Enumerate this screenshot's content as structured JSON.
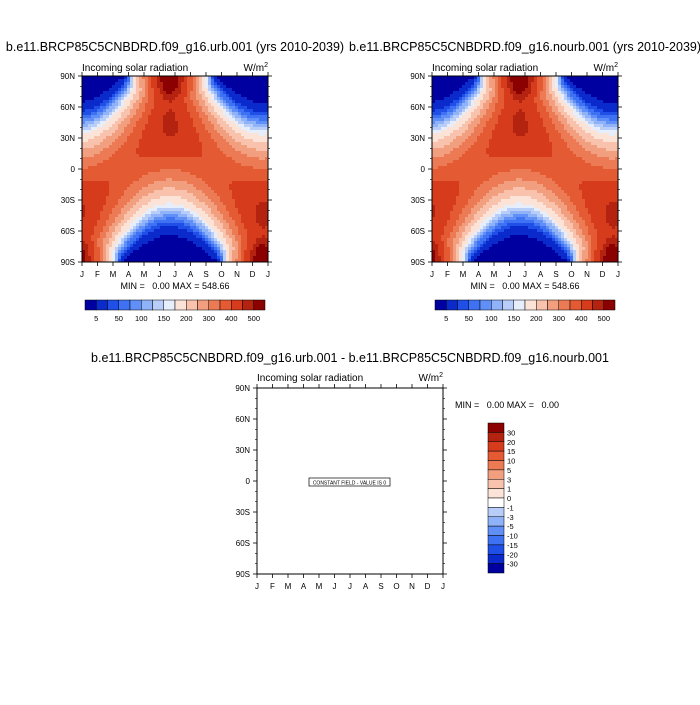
{
  "chart_data": [
    {
      "type": "heatmap",
      "title": "b.e11.BRCP85C5CNBDRD.f09_g16.urb.001 (yrs 2010-2039)",
      "subtitle_left": "Incoming solar radiation",
      "units": "W/m2",
      "x_ticks": [
        "J",
        "F",
        "M",
        "A",
        "M",
        "J",
        "J",
        "A",
        "S",
        "O",
        "N",
        "D",
        "J"
      ],
      "y_ticks": [
        "90N",
        "60N",
        "30N",
        "0",
        "30S",
        "60S",
        "90S"
      ],
      "stats_text": "MIN =   0.00 MAX = 548.66",
      "min": 0.0,
      "max": 548.66,
      "colorbar_labels": [
        "5",
        "50",
        "100",
        "150",
        "200",
        "300",
        "400",
        "500"
      ],
      "colorbar_orientation": "horizontal",
      "colorbar_colors": [
        "#0000a0",
        "#0a2acc",
        "#1f4fe6",
        "#3f72f2",
        "#5f8ff7",
        "#8fb2f9",
        "#b8cdf8",
        "#e6eefc",
        "#fbe3d8",
        "#f8c2ad",
        "#f29f80",
        "#eb7a55",
        "#e45a33",
        "#d63b1c",
        "#b4230f",
        "#8b0000"
      ]
    },
    {
      "type": "heatmap",
      "title": "b.e11.BRCP85C5CNBDRD.f09_g16.nourb.001 (yrs 2010-2039)",
      "subtitle_left": "Incoming solar radiation",
      "units": "W/m2",
      "x_ticks": [
        "J",
        "F",
        "M",
        "A",
        "M",
        "J",
        "J",
        "A",
        "S",
        "O",
        "N",
        "D",
        "J"
      ],
      "y_ticks": [
        "90N",
        "60N",
        "30N",
        "0",
        "30S",
        "60S",
        "90S"
      ],
      "stats_text": "MIN =   0.00 MAX = 548.66",
      "min": 0.0,
      "max": 548.66,
      "colorbar_labels": [
        "5",
        "50",
        "100",
        "150",
        "200",
        "300",
        "400",
        "500"
      ],
      "colorbar_orientation": "horizontal",
      "colorbar_colors": [
        "#0000a0",
        "#0a2acc",
        "#1f4fe6",
        "#3f72f2",
        "#5f8ff7",
        "#8fb2f9",
        "#b8cdf8",
        "#e6eefc",
        "#fbe3d8",
        "#f8c2ad",
        "#f29f80",
        "#eb7a55",
        "#e45a33",
        "#d63b1c",
        "#b4230f",
        "#8b0000"
      ]
    },
    {
      "type": "heatmap",
      "title": "b.e11.BRCP85C5CNBDRD.f09_g16.urb.001 - b.e11.BRCP85C5CNBDRD.f09_g16.nourb.001",
      "subtitle_left": "Incoming solar radiation",
      "units": "W/m2",
      "x_ticks": [
        "J",
        "F",
        "M",
        "A",
        "M",
        "J",
        "J",
        "A",
        "S",
        "O",
        "N",
        "D",
        "J"
      ],
      "y_ticks": [
        "90N",
        "60N",
        "30N",
        "0",
        "30S",
        "60S",
        "90S"
      ],
      "stats_text": "MIN =   0.00 MAX =   0.00",
      "min": 0.0,
      "max": 0.0,
      "center_text": "CONSTANT FIELD - VALUE IS 0",
      "colorbar_labels": [
        "30",
        "20",
        "15",
        "10",
        "5",
        "3",
        "1",
        "0",
        "-1",
        "-3",
        "-5",
        "-10",
        "-15",
        "-20",
        "-30"
      ],
      "colorbar_orientation": "vertical",
      "colorbar_colors": [
        "#8b0000",
        "#b4230f",
        "#d63b1c",
        "#e45a33",
        "#eb7a55",
        "#f29f80",
        "#f8c2ad",
        "#fbe3d8",
        "#ffffff",
        "#b8cdf8",
        "#8fb2f9",
        "#5f8ff7",
        "#3f72f2",
        "#1f4fe6",
        "#0a2acc",
        "#0000a0"
      ]
    }
  ]
}
